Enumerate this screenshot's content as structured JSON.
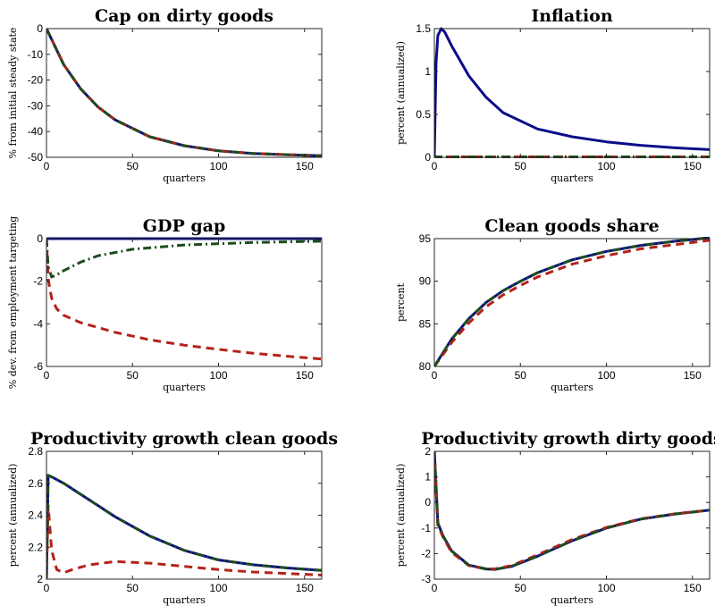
{
  "colors": {
    "blue": "#0c0c8a",
    "red": "#b3221a",
    "green": "#1e4d1e",
    "axis": "#262626"
  },
  "chart_data": [
    {
      "type": "line",
      "title": "Cap on dirty goods",
      "xlabel": "quarters",
      "ylabel": "% from initial steady state",
      "xlim": [
        0,
        160
      ],
      "ylim": [
        -50,
        0
      ],
      "xticks": [
        "0",
        "50",
        "100",
        "150"
      ],
      "xtick_values": [
        0,
        50,
        100,
        150
      ],
      "yticks": [
        "0",
        "-10",
        "-20",
        "-30",
        "-40",
        "-50"
      ],
      "ytick_values": [
        0,
        -10,
        -20,
        -30,
        -40,
        -50
      ],
      "series": [
        {
          "style": "solid",
          "color": "blue",
          "x": [
            0,
            10,
            20,
            30,
            40,
            60,
            80,
            100,
            120,
            140,
            160
          ],
          "y": [
            0,
            -14,
            -23.5,
            -30.5,
            -35.5,
            -42,
            -45.5,
            -47.5,
            -48.5,
            -49,
            -49.4
          ]
        },
        {
          "style": "dashed",
          "color": "red",
          "x": [
            0,
            10,
            20,
            30,
            40,
            60,
            80,
            100,
            120,
            140,
            160
          ],
          "y": [
            0,
            -14,
            -23.5,
            -30.5,
            -35.5,
            -42,
            -45.5,
            -47.5,
            -48.5,
            -49,
            -49.4
          ]
        },
        {
          "style": "dashdot",
          "color": "green",
          "x": [
            0,
            10,
            20,
            30,
            40,
            60,
            80,
            100,
            120,
            140,
            160
          ],
          "y": [
            0,
            -14,
            -23.5,
            -30.5,
            -35.5,
            -42,
            -45.5,
            -47.5,
            -48.5,
            -49,
            -49.4
          ]
        }
      ]
    },
    {
      "type": "line",
      "title": "Inflation",
      "xlabel": "quarters",
      "ylabel": "percent (annualized)",
      "xlim": [
        0,
        160
      ],
      "ylim": [
        0,
        1.5
      ],
      "xticks": [
        "0",
        "50",
        "100",
        "150"
      ],
      "xtick_values": [
        0,
        50,
        100,
        150
      ],
      "yticks": [
        "0",
        "0.5",
        "1",
        "1.5"
      ],
      "ytick_values": [
        0,
        0.5,
        1,
        1.5
      ],
      "series": [
        {
          "style": "solid",
          "color": "blue",
          "x": [
            0,
            1,
            2,
            4,
            6,
            10,
            20,
            30,
            40,
            60,
            80,
            100,
            120,
            140,
            160
          ],
          "y": [
            0,
            1.1,
            1.42,
            1.5,
            1.46,
            1.3,
            0.95,
            0.7,
            0.52,
            0.33,
            0.24,
            0.18,
            0.14,
            0.11,
            0.09
          ]
        },
        {
          "style": "dashed",
          "color": "red",
          "x": [
            0,
            160
          ],
          "y": [
            0.005,
            0.005
          ]
        },
        {
          "style": "dashdot",
          "color": "green",
          "x": [
            0,
            160
          ],
          "y": [
            0.005,
            0.005
          ]
        }
      ]
    },
    {
      "type": "line",
      "title": "GDP gap",
      "xlabel": "quarters",
      "ylabel": "% dev. from employment targeting",
      "xlim": [
        0,
        160
      ],
      "ylim": [
        -6,
        0
      ],
      "xticks": [
        "0",
        "50",
        "100",
        "150"
      ],
      "xtick_values": [
        0,
        50,
        100,
        150
      ],
      "yticks": [
        "0",
        "-2",
        "-4",
        "-6"
      ],
      "ytick_values": [
        0,
        -2,
        -4,
        -6
      ],
      "series": [
        {
          "style": "solid",
          "color": "blue",
          "x": [
            0,
            160
          ],
          "y": [
            0,
            0
          ]
        },
        {
          "style": "dashed",
          "color": "red",
          "x": [
            0,
            1,
            3,
            6,
            10,
            20,
            40,
            60,
            80,
            100,
            120,
            140,
            160
          ],
          "y": [
            0,
            -1.9,
            -2.8,
            -3.3,
            -3.6,
            -3.95,
            -4.4,
            -4.75,
            -5.0,
            -5.2,
            -5.38,
            -5.52,
            -5.65
          ]
        },
        {
          "style": "dashdot",
          "color": "green",
          "x": [
            0,
            1,
            3,
            6,
            10,
            20,
            30,
            50,
            80,
            120,
            160
          ],
          "y": [
            0,
            -1.3,
            -1.8,
            -1.7,
            -1.5,
            -1.1,
            -0.8,
            -0.5,
            -0.3,
            -0.18,
            -0.12
          ]
        }
      ]
    },
    {
      "type": "line",
      "title": "Clean goods share",
      "xlabel": "quarters",
      "ylabel": "percent",
      "xlim": [
        0,
        160
      ],
      "ylim": [
        80,
        95
      ],
      "xticks": [
        "0",
        "50",
        "100",
        "150"
      ],
      "xtick_values": [
        0,
        50,
        100,
        150
      ],
      "yticks": [
        "80",
        "85",
        "90",
        "95"
      ],
      "ytick_values": [
        80,
        85,
        90,
        95
      ],
      "series": [
        {
          "style": "solid",
          "color": "blue",
          "x": [
            0,
            10,
            20,
            30,
            40,
            50,
            60,
            80,
            100,
            120,
            140,
            160
          ],
          "y": [
            80,
            83.2,
            85.6,
            87.5,
            88.9,
            90.0,
            91.0,
            92.5,
            93.5,
            94.2,
            94.7,
            95.1
          ]
        },
        {
          "style": "dashed",
          "color": "red",
          "x": [
            0,
            10,
            20,
            30,
            40,
            50,
            60,
            80,
            100,
            120,
            140,
            160
          ],
          "y": [
            80,
            82.8,
            85.1,
            87.0,
            88.4,
            89.5,
            90.5,
            92.0,
            93.0,
            93.8,
            94.3,
            94.8
          ]
        },
        {
          "style": "dashdot",
          "color": "green",
          "x": [
            0,
            10,
            20,
            30,
            40,
            50,
            60,
            80,
            100,
            120,
            140,
            160
          ],
          "y": [
            80,
            83.2,
            85.6,
            87.5,
            88.9,
            90.0,
            91.0,
            92.5,
            93.5,
            94.2,
            94.7,
            95.1
          ]
        }
      ]
    },
    {
      "type": "line",
      "title": "Productivity growth clean goods",
      "xlabel": "quarters",
      "ylabel": "percent (annualized)",
      "xlim": [
        0,
        160
      ],
      "ylim": [
        2,
        2.8
      ],
      "xticks": [
        "0",
        "50",
        "100",
        "150"
      ],
      "xtick_values": [
        0,
        50,
        100,
        150
      ],
      "yticks": [
        "2",
        "2.2",
        "2.4",
        "2.6",
        "2.8"
      ],
      "ytick_values": [
        2,
        2.2,
        2.4,
        2.6,
        2.8
      ],
      "series": [
        {
          "style": "solid",
          "color": "blue",
          "x": [
            0,
            1,
            3,
            10,
            20,
            30,
            40,
            60,
            80,
            100,
            120,
            140,
            160
          ],
          "y": [
            2,
            2.65,
            2.64,
            2.6,
            2.53,
            2.46,
            2.39,
            2.27,
            2.18,
            2.12,
            2.09,
            2.07,
            2.055
          ]
        },
        {
          "style": "dashed",
          "color": "red",
          "x": [
            0,
            1,
            3,
            6,
            10,
            15,
            25,
            40,
            60,
            80,
            100,
            120,
            140,
            160
          ],
          "y": [
            2,
            2.46,
            2.18,
            2.06,
            2.04,
            2.06,
            2.09,
            2.11,
            2.1,
            2.08,
            2.06,
            2.045,
            2.035,
            2.025
          ]
        },
        {
          "style": "dashdot",
          "color": "green",
          "x": [
            0,
            1,
            3,
            10,
            20,
            30,
            40,
            60,
            80,
            100,
            120,
            140,
            160
          ],
          "y": [
            2,
            2.65,
            2.64,
            2.6,
            2.53,
            2.46,
            2.39,
            2.27,
            2.18,
            2.12,
            2.09,
            2.07,
            2.055
          ]
        }
      ]
    },
    {
      "type": "line",
      "title": "Productivity growth dirty goods",
      "xlabel": "quarters",
      "ylabel": "percent (annualized)",
      "xlim": [
        0,
        160
      ],
      "ylim": [
        -3,
        2
      ],
      "xticks": [
        "0",
        "50",
        "100",
        "150"
      ],
      "xtick_values": [
        0,
        50,
        100,
        150
      ],
      "yticks": [
        "2",
        "1",
        "0",
        "-1",
        "-2",
        "-3"
      ],
      "ytick_values": [
        2,
        1,
        0,
        -1,
        -2,
        -3
      ],
      "series": [
        {
          "style": "solid",
          "color": "blue",
          "x": [
            0,
            2,
            5,
            10,
            20,
            30,
            35,
            45,
            60,
            80,
            100,
            120,
            140,
            160
          ],
          "y": [
            2,
            -0.8,
            -1.3,
            -1.9,
            -2.45,
            -2.6,
            -2.62,
            -2.5,
            -2.1,
            -1.5,
            -1.0,
            -0.65,
            -0.45,
            -0.3
          ]
        },
        {
          "style": "dashed",
          "color": "red",
          "x": [
            0,
            2,
            5,
            10,
            20,
            30,
            35,
            45,
            60,
            80,
            100,
            120,
            140,
            160
          ],
          "y": [
            2,
            -0.9,
            -1.35,
            -1.95,
            -2.47,
            -2.6,
            -2.6,
            -2.47,
            -2.05,
            -1.45,
            -0.98,
            -0.64,
            -0.44,
            -0.3
          ]
        },
        {
          "style": "dashdot",
          "color": "green",
          "x": [
            0,
            2,
            5,
            10,
            20,
            30,
            35,
            45,
            60,
            80,
            100,
            120,
            140,
            160
          ],
          "y": [
            2,
            -0.8,
            -1.3,
            -1.9,
            -2.45,
            -2.6,
            -2.62,
            -2.5,
            -2.1,
            -1.5,
            -1.0,
            -0.65,
            -0.45,
            -0.3
          ]
        }
      ]
    }
  ]
}
